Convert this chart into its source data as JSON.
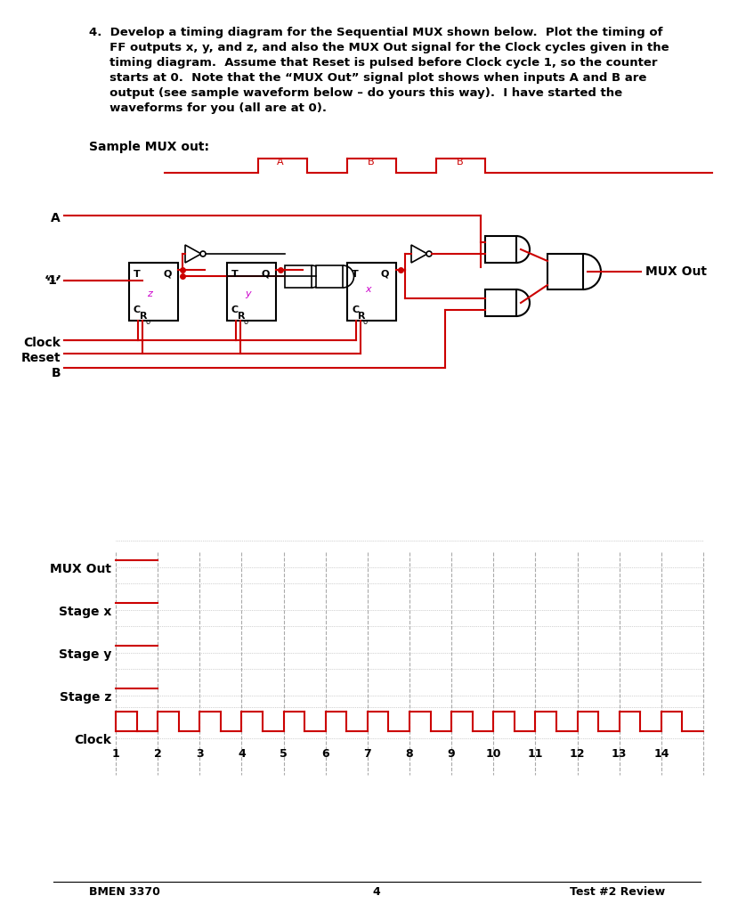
{
  "title_text": "4.  Develop a timing diagram for the Sequential MUX shown below.  Plot the timing of\n     FF outputs x, y, and z, and also the MUX Out signal for the Clock cycles given in the\n     timing diagram.  Assume that Reset is pulsed before Clock cycle 1, so the counter\n     starts at 0.  Note that the “MUX Out” signal plot shows when inputs A and B are\n     output (see sample waveform below – do yours this way).  I have started the\n     waveforms for you (all are at 0).",
  "sample_mux_label": "Sample MUX out:",
  "footer_left": "BMEN 3370",
  "footer_center": "4",
  "footer_right": "Test #2 Review",
  "waveform_labels": [
    "MUX Out",
    "Stage x",
    "Stage y",
    "Stage z",
    "Clock"
  ],
  "clock_ticks": [
    1,
    2,
    3,
    4,
    5,
    6,
    7,
    8,
    9,
    10,
    11,
    12,
    13,
    14
  ],
  "red_color": "#CC0000",
  "black_color": "#000000",
  "gray_color": "#808080",
  "bg_color": "#FFFFFF",
  "magenta_color": "#CC00CC"
}
